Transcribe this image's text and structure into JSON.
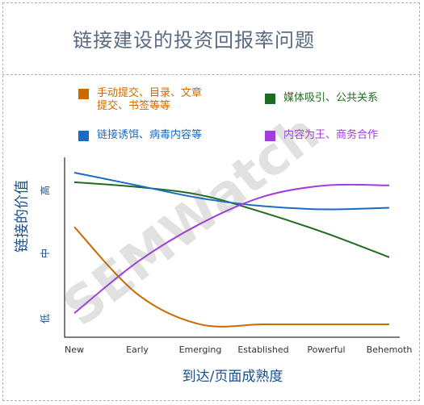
{
  "title": "链接建设的投资回报率问题",
  "watermark": "SEMWatch",
  "chart_data": {
    "type": "line",
    "x": [
      "New",
      "Early",
      "Emerging",
      "Established",
      "Powerful",
      "Behemoth"
    ],
    "xlabel": "到达/页面成熟度",
    "ylabel": "链接的价值",
    "yticks": [
      "低",
      "中",
      "高"
    ],
    "ylim": [
      0,
      100
    ],
    "grid": false,
    "legend_position": "top",
    "series": [
      {
        "name": "手动提交、目录、文章\n提交、书签等等",
        "color": "#cc6a00",
        "values": [
          64,
          22,
          3,
          3,
          3,
          3
        ]
      },
      {
        "name": "媒体吸引、公共关系",
        "color": "#1f6b1f",
        "values": [
          92,
          89,
          84,
          73,
          60,
          45
        ]
      },
      {
        "name": "链接诱饵、病毒内容等",
        "color": "#1a6bc4",
        "values": [
          98,
          90,
          82,
          77,
          75,
          76
        ]
      },
      {
        "name": "内容为王、商务合作",
        "color": "#a33be0",
        "values": [
          10,
          42,
          66,
          83,
          90,
          90
        ]
      }
    ]
  }
}
